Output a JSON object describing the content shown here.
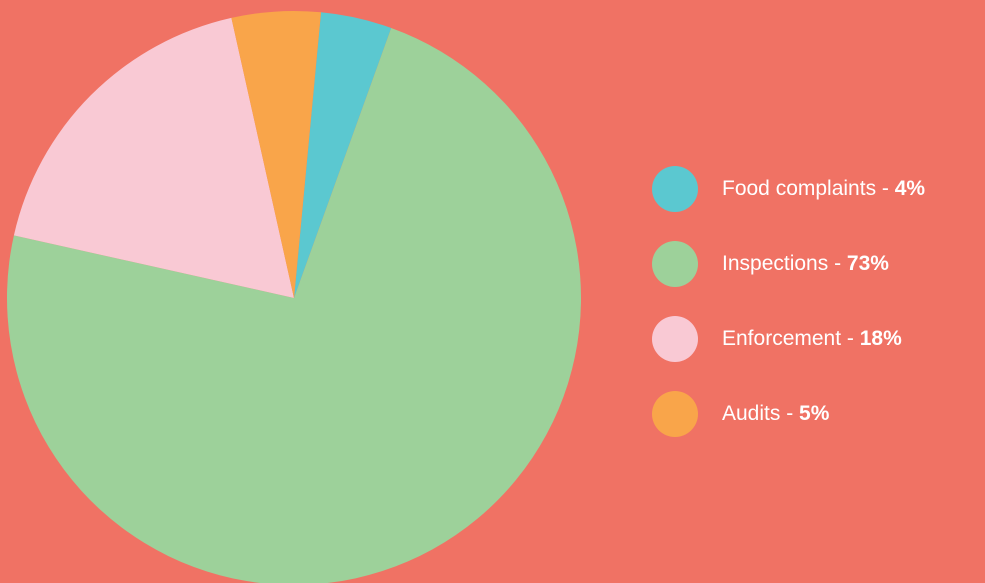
{
  "chart_data": {
    "type": "pie",
    "categories": [
      "Food complaints",
      "Inspections",
      "Enforcement",
      "Audits"
    ],
    "values": [
      4,
      73,
      18,
      5
    ],
    "value_labels": [
      "4%",
      "73%",
      "18%",
      "5%"
    ],
    "colors": [
      "#5bc8d0",
      "#9dd19a",
      "#f9c9d4",
      "#f9a54a"
    ],
    "background": "#f07264",
    "legend": "right"
  }
}
